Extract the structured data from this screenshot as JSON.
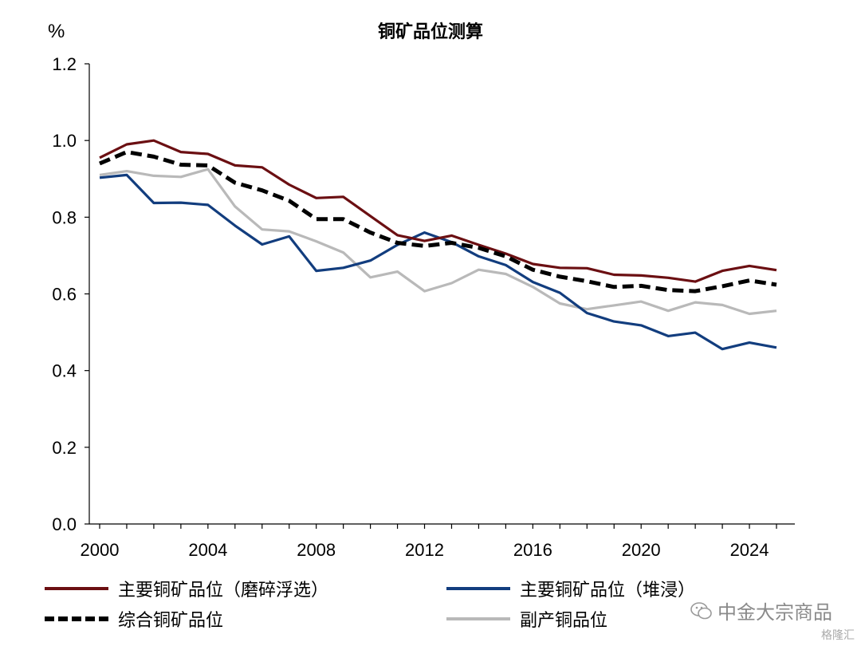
{
  "chart_data": {
    "type": "line",
    "title": "铜矿品位测算",
    "unit": "%",
    "ylim": [
      0,
      1.2
    ],
    "yticks": [
      "0.0",
      "0.2",
      "0.4",
      "0.6",
      "0.8",
      "1.0",
      "1.2"
    ],
    "xlim": [
      2000,
      2025
    ],
    "xticks": [
      "2000",
      "2004",
      "2008",
      "2012",
      "2016",
      "2020",
      "2024"
    ],
    "x": [
      2000,
      2001,
      2002,
      2003,
      2004,
      2005,
      2006,
      2007,
      2008,
      2009,
      2010,
      2011,
      2012,
      2013,
      2014,
      2015,
      2016,
      2017,
      2018,
      2019,
      2020,
      2021,
      2022,
      2023,
      2024,
      2025
    ],
    "series": [
      {
        "name": "主要铜矿品位（磨碎浮选）",
        "color": "#6b0f12",
        "dash": "solid",
        "values": [
          0.955,
          0.99,
          1.0,
          0.97,
          0.965,
          0.935,
          0.93,
          0.885,
          0.85,
          0.853,
          0.803,
          0.753,
          0.738,
          0.752,
          0.728,
          0.705,
          0.678,
          0.668,
          0.667,
          0.65,
          0.648,
          0.642,
          0.632,
          0.66,
          0.673,
          0.662
        ]
      },
      {
        "name": "主要铜矿品位（堆浸）",
        "color": "#123d7e",
        "dash": "solid",
        "values": [
          0.903,
          0.91,
          0.837,
          0.838,
          0.832,
          0.778,
          0.729,
          0.75,
          0.66,
          0.668,
          0.687,
          0.728,
          0.76,
          0.735,
          0.698,
          0.675,
          0.631,
          0.603,
          0.55,
          0.528,
          0.518,
          0.49,
          0.499,
          0.456,
          0.473,
          0.46
        ]
      },
      {
        "name": "综合铜矿品位",
        "color": "#000000",
        "dash": "dashed",
        "values": [
          0.94,
          0.97,
          0.958,
          0.937,
          0.935,
          0.89,
          0.87,
          0.843,
          0.795,
          0.795,
          0.76,
          0.733,
          0.725,
          0.733,
          0.72,
          0.698,
          0.663,
          0.645,
          0.633,
          0.618,
          0.621,
          0.61,
          0.607,
          0.62,
          0.635,
          0.624
        ]
      },
      {
        "name": "副产铜品位",
        "color": "#b9b9b9",
        "dash": "solid",
        "values": [
          0.91,
          0.92,
          0.908,
          0.905,
          0.925,
          0.828,
          0.768,
          0.763,
          0.737,
          0.708,
          0.643,
          0.658,
          0.607,
          0.628,
          0.663,
          0.652,
          0.618,
          0.575,
          0.56,
          0.57,
          0.58,
          0.556,
          0.578,
          0.571,
          0.548,
          0.556
        ]
      }
    ]
  },
  "legend": {
    "items": [
      {
        "label": "主要铜矿品位（磨碎浮选）",
        "color": "#6b0f12",
        "dash": "solid"
      },
      {
        "label": "主要铜矿品位（堆浸）",
        "color": "#123d7e",
        "dash": "solid"
      },
      {
        "label": "综合铜矿品位",
        "color": "#000000",
        "dash": "dashed"
      },
      {
        "label": "副产铜品位",
        "color": "#b9b9b9",
        "dash": "solid"
      }
    ]
  },
  "watermark": {
    "brand": "中金大宗商品",
    "source": "格隆汇"
  }
}
